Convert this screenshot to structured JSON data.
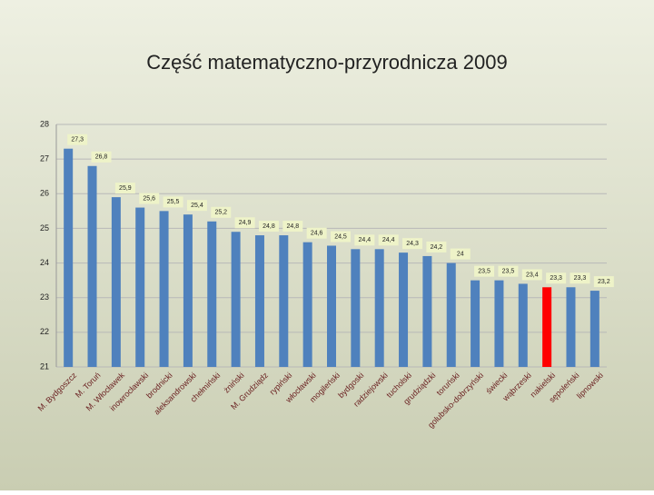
{
  "chart_data": {
    "type": "bar",
    "title": "Część matematyczno-przyrodnicza 2009",
    "categories": [
      "M. Bydgoszcz",
      "M. Toruń",
      "M. Włocławek",
      "inowrocławski",
      "brodnicki",
      "aleksandrowski",
      "chełmiński",
      "żniński",
      "M. Grudziądz",
      "rypiński",
      "włocławski",
      "mogileński",
      "bydgoski",
      "radziejowski",
      "tucholski",
      "grudziądzki",
      "toruński",
      "golubsko-dobrzyński",
      "świecki",
      "wąbrzeski",
      "nakielski",
      "sępoleński",
      "lipnowski"
    ],
    "values": [
      27.3,
      26.8,
      25.9,
      25.6,
      25.5,
      25.4,
      25.2,
      24.9,
      24.8,
      24.8,
      24.6,
      24.5,
      24.4,
      24.4,
      24.3,
      24.2,
      24,
      23.5,
      23.5,
      23.4,
      23.3,
      23.3,
      23.2
    ],
    "value_labels": [
      "27,3",
      "26,8",
      "25,9",
      "25,6",
      "25,5",
      "25,4",
      "25,2",
      "24,9",
      "24,8",
      "24,8",
      "24,6",
      "24,5",
      "24,4",
      "24,4",
      "24,3",
      "24,2",
      "24",
      "23,5",
      "23,5",
      "23,4",
      "23,3",
      "23,3",
      "23,2"
    ],
    "colors": [
      "#4f81bd",
      "#4f81bd",
      "#4f81bd",
      "#4f81bd",
      "#4f81bd",
      "#4f81bd",
      "#4f81bd",
      "#4f81bd",
      "#4f81bd",
      "#4f81bd",
      "#4f81bd",
      "#4f81bd",
      "#4f81bd",
      "#4f81bd",
      "#4f81bd",
      "#4f81bd",
      "#4f81bd",
      "#4f81bd",
      "#4f81bd",
      "#4f81bd",
      "#ff0000",
      "#4f81bd",
      "#4f81bd"
    ],
    "ylim": [
      21,
      28
    ],
    "yticks": [
      21,
      22,
      23,
      24,
      25,
      26,
      27,
      28
    ],
    "grid": true
  }
}
